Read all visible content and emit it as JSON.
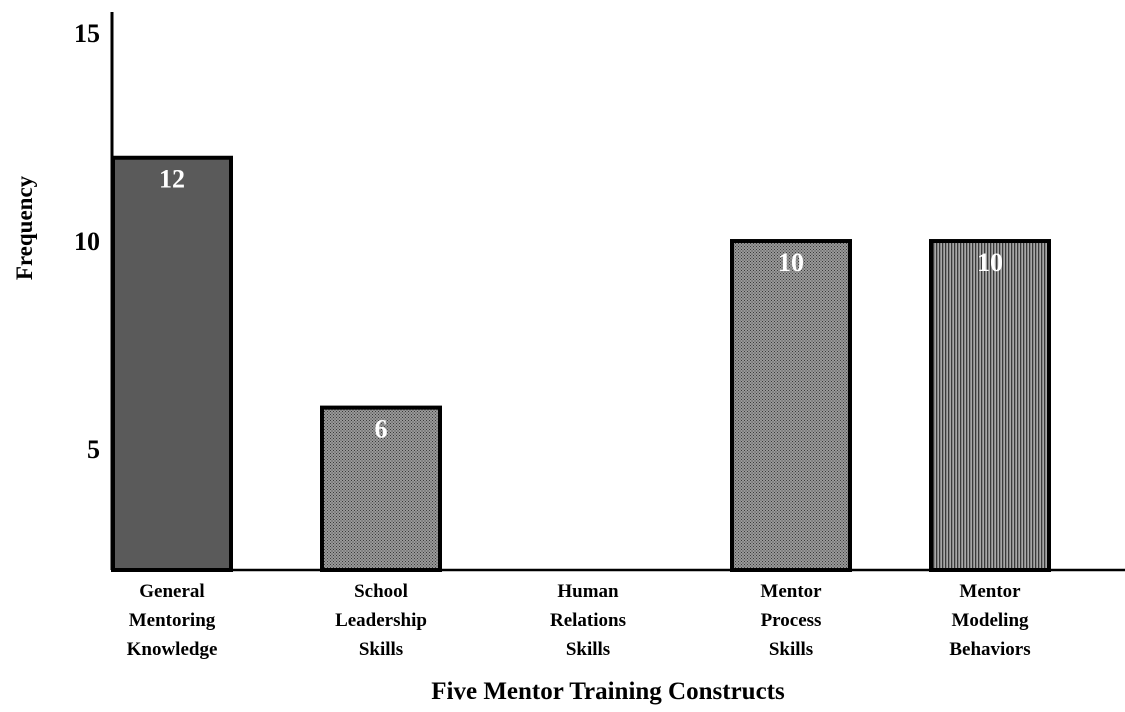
{
  "chart_data": {
    "type": "bar",
    "categories": [
      [
        "General",
        "Mentoring",
        "Knowledge"
      ],
      [
        "School",
        "Leadership",
        "Skills"
      ],
      [
        "Human",
        "Relations",
        "Skills"
      ],
      [
        "Mentor",
        "Process",
        "Skills"
      ],
      [
        "Mentor",
        "Modeling",
        "Behaviors"
      ]
    ],
    "values": [
      12,
      6,
      null,
      10,
      10
    ],
    "data_labels": [
      "12",
      "6",
      "",
      "10",
      "10"
    ],
    "title": "",
    "xlabel": "Five Mentor Training Constructs",
    "ylabel": "Frequency",
    "yticks": [
      5,
      10,
      15
    ],
    "ytick_labels": [
      "5",
      "10",
      "15"
    ],
    "ylim": [
      2.1,
      15.5
    ],
    "bar_styles": [
      "solid",
      "dotted",
      "none",
      "dotted",
      "striped"
    ],
    "colors": {
      "solid_fill": "#5a5a5a",
      "pattern_fill": "#8a8a8a",
      "outline": "#000000",
      "label_text": "#ffffff"
    },
    "grid": false,
    "legend": "none"
  }
}
